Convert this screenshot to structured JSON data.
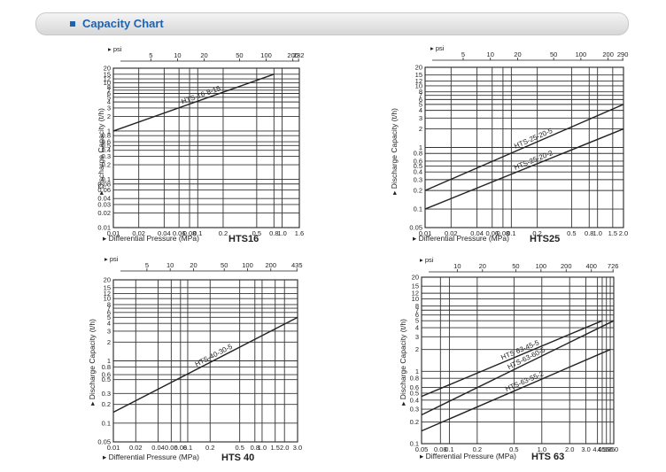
{
  "header": {
    "title": "Capacity Chart"
  },
  "colors": {
    "accent": "#1e62b0",
    "line": "#222222",
    "grid": "#333333",
    "header_bg": "#e4e4e4"
  },
  "chart_data": [
    {
      "type": "line",
      "name": "HTS16",
      "ylabel": "Discharge Capacity  (t/h)",
      "xlabel": "Differential Pressure  (MPa)",
      "top_unit": "psi",
      "x_ticks": [
        "0.01",
        "0.02",
        "0.04",
        "0.06",
        "0.08",
        "0.1",
        "0.2",
        "0.5",
        "0.8",
        "1.0",
        "1.6"
      ],
      "y_ticks": [
        "20",
        "15",
        "12",
        "10",
        "8",
        "7",
        "6",
        "5",
        "4",
        "3",
        "2",
        "1",
        "0.8",
        "0.6",
        "0.5",
        "0.4",
        "0.3",
        "0.2",
        "0.1",
        "0.08",
        "0.06",
        "0.04",
        "0.03",
        "0.02",
        "0.01"
      ],
      "psi_ticks": [
        "5",
        "10",
        "20",
        "50",
        "100",
        "200",
        "232"
      ],
      "series": [
        {
          "name": "HTS-16-8-15",
          "points": [
            [
              0.01,
              1.0
            ],
            [
              0.8,
              15
            ]
          ]
        }
      ],
      "xlim": [
        0.01,
        1.6
      ],
      "ylim": [
        0.01,
        20
      ]
    },
    {
      "type": "line",
      "name": "HTS25",
      "ylabel": "Discharge Capacity  (t/h)",
      "xlabel": "Differential Pressure  (MPa)",
      "top_unit": "psi",
      "x_ticks": [
        "0.01",
        "0.02",
        "0.04",
        "0.06",
        "0.08",
        "0.1",
        "0.2",
        "0.5",
        "0.8",
        "1.0",
        "1.5",
        "2.0"
      ],
      "y_ticks": [
        "20",
        "15",
        "12",
        "10",
        "8",
        "7",
        "6",
        "5",
        "4",
        "3",
        "2",
        "1",
        "0.8",
        "0.6",
        "0.5",
        "0.4",
        "0.3",
        "0.2",
        "0.1",
        "0.05"
      ],
      "psi_ticks": [
        "5",
        "10",
        "20",
        "50",
        "100",
        "200",
        "290"
      ],
      "series": [
        {
          "name": "HTS-25-20-5",
          "points": [
            [
              0.01,
              0.2
            ],
            [
              2.0,
              5
            ]
          ]
        },
        {
          "name": "HTS-25-20-2",
          "points": [
            [
              0.01,
              0.1
            ],
            [
              2.0,
              2
            ]
          ]
        }
      ],
      "xlim": [
        0.01,
        2.0
      ],
      "ylim": [
        0.05,
        20
      ]
    },
    {
      "type": "line",
      "name": "HTS 40",
      "ylabel": "Discharge Capacity  (t/h)",
      "xlabel": "Differential Pressure  (MPa)",
      "top_unit": "psi",
      "x_ticks": [
        "0.01",
        "0.02",
        "0.04",
        "0.06",
        "0.08",
        "0.1",
        "0.2",
        "0.5",
        "0.8",
        "1.0",
        "1.5",
        "2.0",
        "3.0"
      ],
      "y_ticks": [
        "20",
        "15",
        "12",
        "10",
        "8",
        "7",
        "6",
        "5",
        "4",
        "3",
        "2",
        "1",
        "0.8",
        "0.6",
        "0.5",
        "0.3",
        "0.2",
        "0.1",
        "0.05"
      ],
      "psi_ticks": [
        "5",
        "10",
        "20",
        "50",
        "100",
        "200",
        "435"
      ],
      "series": [
        {
          "name": "HTS-40-30-5",
          "points": [
            [
              0.01,
              0.15
            ],
            [
              3.0,
              5
            ]
          ]
        }
      ],
      "xlim": [
        0.01,
        3.0
      ],
      "ylim": [
        0.05,
        20
      ]
    },
    {
      "type": "line",
      "name": "HTS  63",
      "ylabel": "Discharge Capacity  (t/h)",
      "xlabel": "Differential Pressure  (MPa)",
      "top_unit": "psi",
      "x_ticks": [
        "0.05",
        "0.08",
        "0.1",
        "0.2",
        "0.5",
        "1.0",
        "2.0",
        "3.0",
        "4.0",
        "4.5",
        "5.0",
        "5.5",
        "6.0"
      ],
      "y_ticks": [
        "20",
        "15",
        "12",
        "10",
        "8",
        "7",
        "6",
        "5",
        "4",
        "3",
        "2",
        "1",
        "0.8",
        "0.6",
        "0.5",
        "0.4",
        "0.3",
        "0.2",
        "0.1"
      ],
      "psi_ticks": [
        "10",
        "20",
        "50",
        "100",
        "200",
        "400",
        "726"
      ],
      "series": [
        {
          "name": "HTS  63-45-5",
          "points": [
            [
              0.05,
              0.45
            ],
            [
              4.5,
              5
            ]
          ]
        },
        {
          "name": "HTS-63-60-5",
          "points": [
            [
              0.05,
              0.25
            ],
            [
              6.0,
              5
            ]
          ]
        },
        {
          "name": "HTS-63-55-2",
          "points": [
            [
              0.05,
              0.15
            ],
            [
              5.5,
              2
            ]
          ]
        }
      ],
      "xlim": [
        0.05,
        6.0
      ],
      "ylim": [
        0.1,
        20
      ]
    }
  ]
}
